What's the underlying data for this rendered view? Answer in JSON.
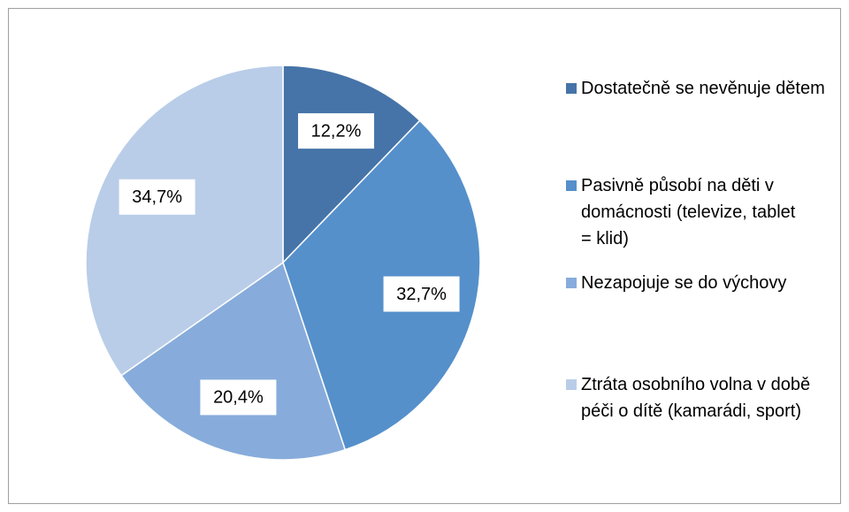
{
  "chart_data": {
    "type": "pie",
    "categories": [
      "Dostatečně se nevěnuje dětem",
      "Pasivně působí na děti v domácnosti (televize, tablet = klid)",
      "Nezapojuje se do výchovy",
      "Ztráta osobního volna v době péči o dítě (kamarádi, sport)"
    ],
    "values": [
      12.2,
      32.7,
      20.4,
      34.7
    ],
    "value_labels": [
      "12,2%",
      "32,7%",
      "20,4%",
      "34,7%"
    ],
    "colors": [
      "#4674a8",
      "#5590cb",
      "#87acdb",
      "#b9cde8"
    ],
    "legend": "right"
  }
}
